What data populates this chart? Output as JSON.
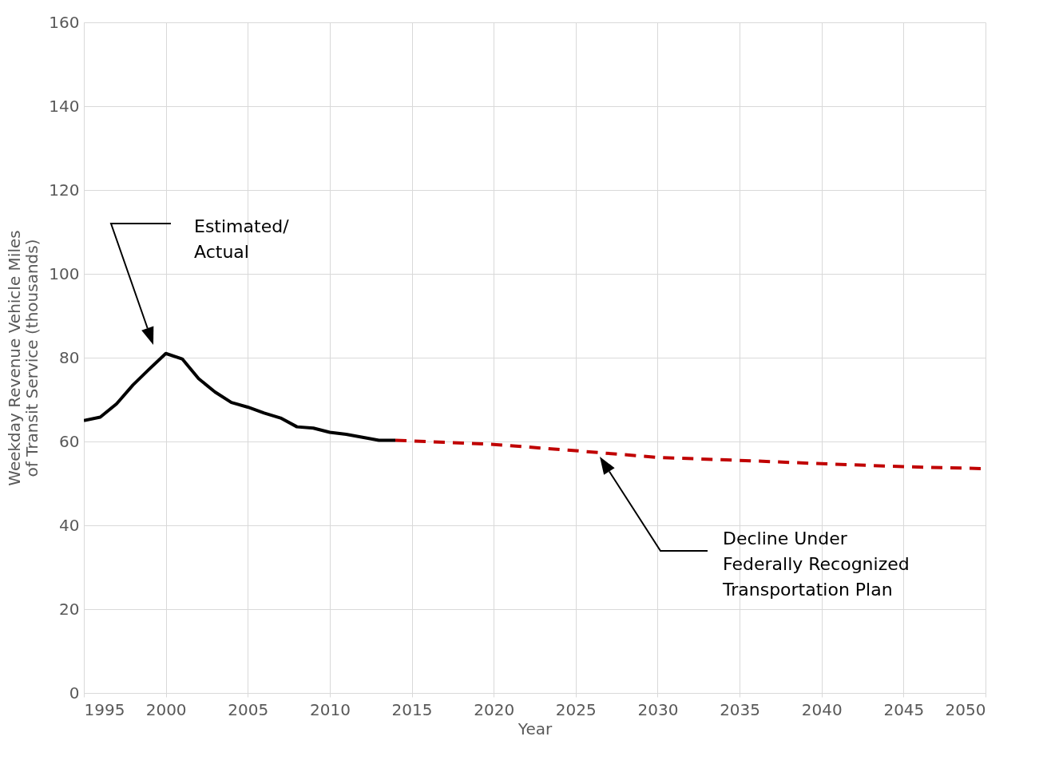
{
  "chart_data": {
    "type": "line",
    "xlabel": "Year",
    "ylabel": "Weekday Revenue Vehicle Miles\nof Transit Service (thousands)",
    "xlim": [
      1995,
      2050
    ],
    "xticks": [
      1995,
      2000,
      2005,
      2010,
      2015,
      2020,
      2025,
      2030,
      2035,
      2040,
      2045,
      2050
    ],
    "ylim": [
      0,
      160
    ],
    "yticks": [
      0,
      20,
      40,
      60,
      80,
      100,
      120,
      140,
      160
    ],
    "grid": true,
    "series": [
      {
        "color": "#000000",
        "line_style": "solid",
        "x": [
          1995,
          1996,
          1997,
          1998,
          1999,
          2000,
          2001,
          2002,
          2003,
          2004,
          2005,
          2006,
          2007,
          2008,
          2009,
          2010,
          2011,
          2012,
          2013,
          2014
        ],
        "values": [
          65,
          65.8,
          69,
          73.5,
          77.3,
          81,
          79.7,
          75,
          71.8,
          69.3,
          68.2,
          66.8,
          65.6,
          63.5,
          63.2,
          62.2,
          61.7,
          61,
          60.3,
          60.3
        ]
      },
      {
        "color": "#c00000",
        "line_style": "dashed",
        "x": [
          2014,
          2020,
          2025,
          2030,
          2035,
          2040,
          2045,
          2050
        ],
        "values": [
          60.3,
          59.3,
          57.8,
          56.2,
          55.5,
          54.7,
          54,
          53.5
        ]
      }
    ],
    "annotations": [
      "Estimated/\nActual",
      "Decline Under\nFederally Recognized\nTransportation Plan"
    ]
  }
}
